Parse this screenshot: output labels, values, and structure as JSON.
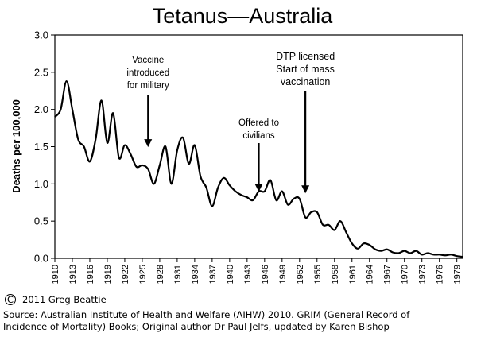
{
  "chart_data": {
    "type": "line",
    "title": "Tetanus—Australia",
    "ylabel": "Deaths per 100,000",
    "xlabel": "",
    "xlim": [
      1910,
      1980
    ],
    "ylim": [
      0,
      3.0
    ],
    "yticks": [
      "0.0",
      "0.5",
      "1.0",
      "1.5",
      "2.0",
      "2.5",
      "3.0"
    ],
    "xticks": [
      "1910",
      "1913",
      "1916",
      "1919",
      "1922",
      "1925",
      "1928",
      "1931",
      "1934",
      "1937",
      "1940",
      "1943",
      "1946",
      "1949",
      "1952",
      "1955",
      "1958",
      "1961",
      "1964",
      "1967",
      "1970",
      "1973",
      "1976",
      "1979"
    ],
    "grid": false,
    "series": [
      {
        "x": [
          1910,
          1911,
          1912,
          1913,
          1914,
          1915,
          1916,
          1917,
          1918,
          1919,
          1920,
          1921,
          1922,
          1923,
          1924,
          1925,
          1926,
          1927,
          1928,
          1929,
          1930,
          1931,
          1932,
          1933,
          1934,
          1935,
          1936,
          1937,
          1938,
          1939,
          1940,
          1941,
          1942,
          1943,
          1944,
          1945,
          1946,
          1947,
          1948,
          1949,
          1950,
          1951,
          1952,
          1953,
          1954,
          1955,
          1956,
          1957,
          1958,
          1959,
          1960,
          1961,
          1962,
          1963,
          1964,
          1965,
          1966,
          1967,
          1968,
          1969,
          1970,
          1971,
          1972,
          1973,
          1974,
          1975,
          1976,
          1977,
          1978,
          1979,
          1980
        ],
        "values": [
          1.9,
          2.0,
          2.38,
          2.0,
          1.6,
          1.5,
          1.3,
          1.6,
          2.12,
          1.55,
          1.95,
          1.35,
          1.52,
          1.4,
          1.23,
          1.25,
          1.2,
          1.0,
          1.25,
          1.5,
          1.0,
          1.45,
          1.62,
          1.27,
          1.52,
          1.1,
          0.95,
          0.7,
          0.95,
          1.08,
          0.98,
          0.9,
          0.85,
          0.82,
          0.78,
          0.9,
          0.9,
          1.05,
          0.78,
          0.9,
          0.72,
          0.8,
          0.8,
          0.55,
          0.62,
          0.62,
          0.45,
          0.45,
          0.38,
          0.5,
          0.35,
          0.2,
          0.13,
          0.2,
          0.18,
          0.12,
          0.1,
          0.12,
          0.08,
          0.07,
          0.1,
          0.07,
          0.1,
          0.05,
          0.07,
          0.05,
          0.05,
          0.04,
          0.05,
          0.03,
          0.02
        ],
        "color": "#000000"
      }
    ],
    "annotations": [
      {
        "lines": [
          "Vaccine",
          "introduced",
          "for military"
        ],
        "x": 1926,
        "y": 1.45
      },
      {
        "lines": [
          "Offered to",
          "civilians"
        ],
        "x": 1945,
        "y": 0.85
      },
      {
        "lines": [
          "DTP licensed",
          "Start of mass",
          "vaccination"
        ],
        "x": 1953,
        "y": 0.83
      }
    ]
  },
  "footer": {
    "copyright_symbol": "C",
    "copyright": "2011 Greg Beattie",
    "source_line1": "Source: Australian Institute of Health and Welfare (AIHW) 2010. GRIM (General Record of",
    "source_line2": "Incidence of Mortality) Books; Original author Dr Paul Jelfs, updated by Karen Bishop"
  }
}
